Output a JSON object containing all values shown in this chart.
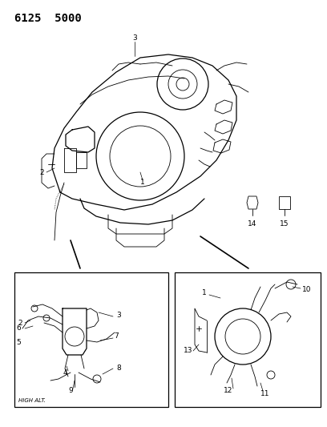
{
  "title": "6125  5000",
  "title_fontsize": 10,
  "title_fontweight": "bold",
  "title_fontfamily": "monospace",
  "bg_color": "#ffffff",
  "line_color": "#000000",
  "label_fontsize": 6.5,
  "high_alt_text": "HIGH ALT.",
  "part14_label": "14",
  "part15_label": "15",
  "figsize": [
    4.08,
    5.33
  ],
  "dpi": 100
}
